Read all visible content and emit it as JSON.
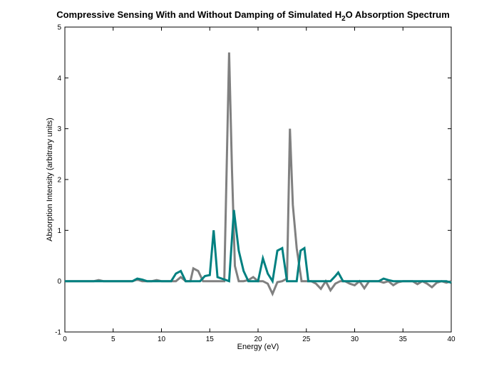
{
  "chart_data": {
    "type": "line",
    "title": {
      "prefix": "Compressive Sensing With and Without Damping of Simulated H",
      "subscript": "2",
      "suffix": "O Absorption Spectrum"
    },
    "xlabel": "Energy (eV)",
    "ylabel": "Absorption Intensity (arbitrary units)",
    "xlim": [
      0,
      40
    ],
    "ylim": [
      -1,
      5
    ],
    "xticks": [
      0,
      5,
      10,
      15,
      20,
      25,
      30,
      35,
      40
    ],
    "yticks": [
      -1,
      0,
      1,
      2,
      3,
      4,
      5
    ],
    "grid": false,
    "legend": "none",
    "series": [
      {
        "color": "#808080",
        "x": [
          0,
          3.0,
          3.5,
          4.0,
          7.0,
          7.5,
          8.0,
          9.0,
          9.5,
          10.0,
          11.5,
          12.0,
          12.5,
          13.0,
          13.3,
          13.8,
          14.3,
          16.5,
          17.0,
          17.3,
          17.6,
          18.0,
          18.5,
          19.0,
          19.5,
          20.0,
          20.5,
          21.0,
          21.5,
          22.0,
          22.5,
          23.0,
          23.3,
          23.6,
          24.0,
          24.5,
          25.0,
          25.5,
          26.0,
          26.5,
          27.0,
          27.5,
          28.0,
          28.5,
          29.0,
          29.5,
          30.0,
          30.5,
          31.0,
          31.5,
          32.0,
          32.5,
          33.0,
          33.5,
          34.0,
          34.5,
          35.0,
          36.0,
          36.5,
          37.0,
          37.5,
          38.0,
          38.5,
          39.0,
          39.5,
          40.0
        ],
        "y": [
          0,
          0,
          0.02,
          0,
          0,
          0.03,
          0,
          0,
          0.02,
          0,
          0,
          0.08,
          0,
          0,
          0.25,
          0.2,
          0,
          0,
          4.5,
          2.2,
          0.3,
          0,
          0,
          0.02,
          0.08,
          0,
          0,
          -0.05,
          -0.25,
          -0.02,
          0,
          0.05,
          3.0,
          1.5,
          0.65,
          0,
          0,
          0,
          -0.05,
          -0.15,
          0,
          -0.18,
          -0.05,
          0,
          0,
          -0.05,
          -0.08,
          0,
          -0.14,
          0,
          0,
          0,
          -0.03,
          0,
          -0.08,
          -0.02,
          0,
          0,
          -0.06,
          0,
          -0.05,
          -0.12,
          -0.03,
          0,
          -0.03,
          0
        ]
      },
      {
        "color": "#008080",
        "x": [
          0,
          7.0,
          7.5,
          8.0,
          8.5,
          11.0,
          11.5,
          12.0,
          12.5,
          14.0,
          14.5,
          15.0,
          15.4,
          15.8,
          17.0,
          17.5,
          18.0,
          18.5,
          19.0,
          20.0,
          20.5,
          21.0,
          21.5,
          22.0,
          22.5,
          23.0,
          24.0,
          24.4,
          24.8,
          25.2,
          27.5,
          28.0,
          28.3,
          28.8,
          32.5,
          33.0,
          33.5,
          34.0,
          39.5,
          40.0
        ],
        "y": [
          0,
          0,
          0.05,
          0.03,
          0,
          0,
          0.15,
          0.2,
          0,
          0,
          0.1,
          0.12,
          1.0,
          0.08,
          0,
          1.4,
          0.6,
          0.2,
          0,
          0,
          0.45,
          0.15,
          0,
          0.6,
          0.65,
          0,
          0,
          0.6,
          0.65,
          0,
          0,
          0.1,
          0.17,
          0,
          0,
          0.05,
          0.02,
          0,
          0,
          -0.03
        ]
      }
    ]
  }
}
